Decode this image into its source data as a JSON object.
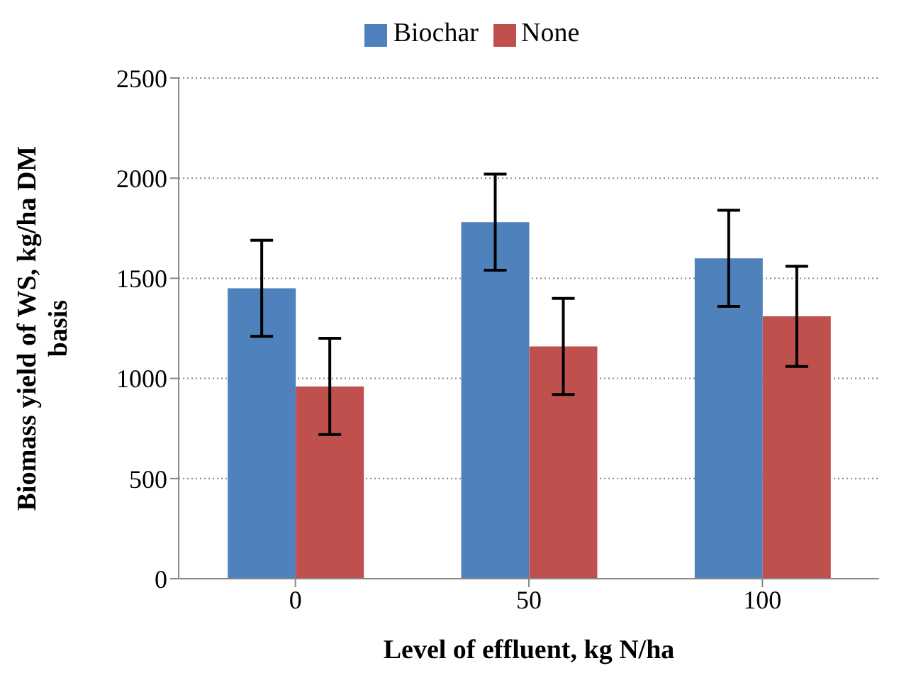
{
  "chart_data": {
    "type": "bar",
    "categories": [
      "0",
      "50",
      "100"
    ],
    "xlabel": "Level of effluent, kg N/ha",
    "ylabel": "Biomass yield of WS, kg/ha DM basis",
    "series": [
      {
        "name": "Biochar",
        "color": "#4f81bd",
        "values": [
          1450,
          1780,
          1600
        ],
        "errors": [
          240,
          240,
          240
        ]
      },
      {
        "name": "None",
        "color": "#c0504d",
        "values": [
          960,
          1160,
          1310
        ],
        "errors": [
          240,
          240,
          250
        ]
      }
    ],
    "ylim": [
      0,
      2500
    ],
    "yticks": [
      0,
      500,
      1000,
      1500,
      2000,
      2500
    ],
    "grid": "y",
    "legend": "top"
  }
}
